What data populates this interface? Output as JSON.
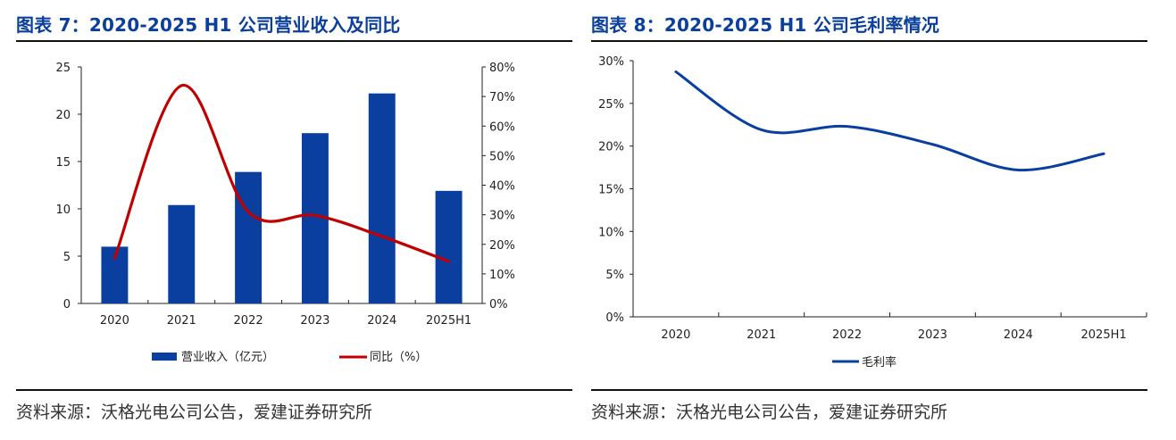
{
  "colors": {
    "title": "#0b3f9c",
    "bar": "#0a3fa0",
    "yoy_line": "#c00000",
    "margin_line": "#0a3fa0",
    "axis": "#222222"
  },
  "left": {
    "title": "图表 7：2020-2025 H1 公司营业收入及同比",
    "source": "资料来源：沃格光电公司公告，爱建证券研究所"
  },
  "right": {
    "title": "图表 8：2020-2025 H1 公司毛利率情况",
    "source": "资料来源：沃格光电公司公告，爱建证券研究所"
  },
  "chart_data": [
    {
      "type": "bar",
      "title": "2020-2025 H1 公司营业收入及同比",
      "categories": [
        "2020",
        "2021",
        "2022",
        "2023",
        "2024",
        "2025H1"
      ],
      "series": [
        {
          "name": "营业收入（亿元）",
          "type": "bar",
          "axis": "left",
          "values": [
            6.0,
            10.4,
            13.9,
            18.0,
            22.2,
            11.9
          ]
        },
        {
          "name": "同比（%）",
          "type": "line",
          "axis": "right",
          "smooth": true,
          "values": [
            15.4,
            73.7,
            31.0,
            29.8,
            22.7,
            14.2
          ]
        }
      ],
      "y_left": {
        "min": 0,
        "max": 25,
        "step": 5,
        "tick_labels": [
          "0",
          "5",
          "10",
          "15",
          "20",
          "25"
        ]
      },
      "y_right": {
        "min": 0,
        "max": 80,
        "step": 10,
        "tick_labels": [
          "0%",
          "10%",
          "20%",
          "30%",
          "40%",
          "50%",
          "60%",
          "70%",
          "80%"
        ]
      },
      "xlabel": "",
      "ylabel": "",
      "grid": false,
      "legend": "bottom"
    },
    {
      "type": "line",
      "title": "2020-2025 H1 公司毛利率情况",
      "categories": [
        "2020",
        "2021",
        "2022",
        "2023",
        "2024",
        "2025H1"
      ],
      "series": [
        {
          "name": "毛利率",
          "smooth": true,
          "values": [
            28.7,
            21.9,
            22.3,
            20.2,
            17.2,
            19.1
          ]
        }
      ],
      "y": {
        "min": 0,
        "max": 30,
        "step": 5,
        "tick_labels": [
          "0%",
          "5%",
          "10%",
          "15%",
          "20%",
          "25%",
          "30%"
        ]
      },
      "xlabel": "",
      "ylabel": "",
      "grid": false,
      "legend": "bottom"
    }
  ]
}
